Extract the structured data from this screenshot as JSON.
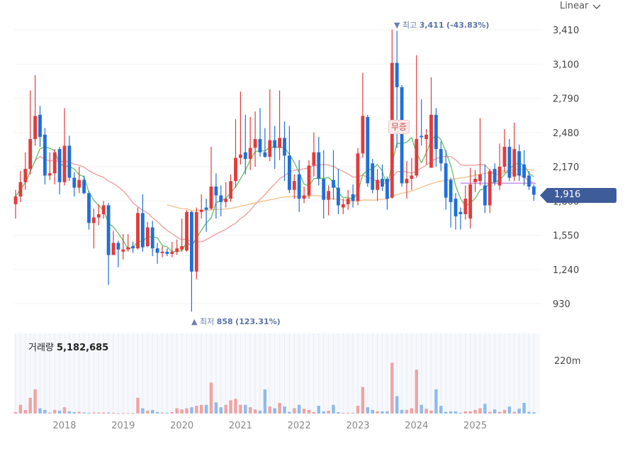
{
  "toolbar": {
    "scale_mode": "Linear",
    "scale_icon": "chevron-down-icon"
  },
  "annotations": {
    "high_prefix": "▼ 최고",
    "high_value": "3,411",
    "high_pct": "(-43.83%)",
    "low_prefix": "▲ 최저",
    "low_value": "858",
    "low_pct": "(123.31%)",
    "event_badge": "무증"
  },
  "current_price": "1,916",
  "volume": {
    "label": "거래량",
    "value": "5,182,685",
    "axis_label": "220m"
  },
  "colors": {
    "up": "#e23b3b",
    "down": "#1f6fd8",
    "vol_up": "#f0a3a3",
    "vol_down": "#8dbbeb",
    "ma_short": "#6cc46c",
    "ma_mid": "#f2a0a0",
    "ma_long": "#f6c38e",
    "ref_line": "#c28de6",
    "tag": "#3f5c9a"
  },
  "chart_data": {
    "type": "candlestick",
    "interval": "monthly",
    "start": "2017-03",
    "y_ticks": [
      "3,410",
      "3,100",
      "2,790",
      "2,480",
      "2,170",
      "1,860",
      "1,550",
      "1,240",
      "930"
    ],
    "y_tick_values": [
      3410,
      3100,
      2790,
      2480,
      2170,
      1860,
      1550,
      1240,
      930
    ],
    "ylim": [
      870,
      3420
    ],
    "x_labels": [
      "2018",
      "2019",
      "2020",
      "2021",
      "2022",
      "2023",
      "2024",
      "2025"
    ],
    "x_label_index": [
      10,
      22,
      34,
      46,
      58,
      70,
      82,
      94
    ],
    "high": {
      "value": 3411,
      "index": 77
    },
    "low": {
      "value": 858,
      "index": 36
    },
    "event_index": 76,
    "ma_periods": {
      "short": 5,
      "mid": 20,
      "long": 60
    },
    "long_ma_start_index": 31,
    "ref_line": {
      "value": 2020,
      "from_index": 91
    },
    "ohlc": [
      [
        1830,
        1960,
        1700,
        1900
      ],
      [
        1900,
        2130,
        1850,
        2030
      ],
      [
        2030,
        2300,
        1960,
        2150
      ],
      [
        2150,
        2860,
        2100,
        2420
      ],
      [
        2420,
        3000,
        2360,
        2630
      ],
      [
        2640,
        2720,
        2350,
        2440
      ],
      [
        2460,
        2520,
        2010,
        2090
      ],
      [
        2090,
        2300,
        2050,
        2110
      ],
      [
        2110,
        2330,
        2010,
        2300
      ],
      [
        2330,
        2350,
        1920,
        2030
      ],
      [
        2030,
        2700,
        2000,
        2360
      ],
      [
        2360,
        2450,
        2040,
        2070
      ],
      [
        2070,
        2120,
        1900,
        1980
      ],
      [
        1980,
        2170,
        1930,
        2050
      ],
      [
        2050,
        2090,
        1920,
        1930
      ],
      [
        1930,
        1950,
        1600,
        1660
      ],
      [
        1660,
        1790,
        1430,
        1710
      ],
      [
        1710,
        1830,
        1640,
        1740
      ],
      [
        1740,
        1860,
        1700,
        1820
      ],
      [
        1820,
        1840,
        1100,
        1370
      ],
      [
        1370,
        1590,
        1370,
        1480
      ],
      [
        1480,
        1500,
        1260,
        1420
      ],
      [
        1400,
        1560,
        1330,
        1420
      ],
      [
        1420,
        1560,
        1400,
        1440
      ],
      [
        1450,
        1490,
        1390,
        1430
      ],
      [
        1430,
        1800,
        1420,
        1750
      ],
      [
        1750,
        1920,
        1400,
        1440
      ],
      [
        1450,
        1670,
        1440,
        1620
      ],
      [
        1620,
        1680,
        1360,
        1430
      ],
      [
        1430,
        1480,
        1290,
        1390
      ],
      [
        1390,
        1450,
        1350,
        1400
      ],
      [
        1400,
        1430,
        1360,
        1380
      ],
      [
        1380,
        1490,
        1350,
        1400
      ],
      [
        1400,
        1510,
        1370,
        1430
      ],
      [
        1420,
        1700,
        1400,
        1450
      ],
      [
        1410,
        1780,
        1400,
        1760
      ],
      [
        1760,
        1770,
        858,
        1220
      ],
      [
        1220,
        1800,
        1150,
        1760
      ],
      [
        1760,
        1920,
        1700,
        1780
      ],
      [
        1800,
        1880,
        1580,
        1780
      ],
      [
        1790,
        2350,
        1780,
        1990
      ],
      [
        1990,
        2110,
        1700,
        1910
      ],
      [
        1910,
        2000,
        1720,
        1850
      ],
      [
        1850,
        2030,
        1800,
        1880
      ],
      [
        1880,
        2100,
        1850,
        2040
      ],
      [
        2040,
        2600,
        1980,
        2250
      ],
      [
        2250,
        2850,
        2190,
        2280
      ],
      [
        2300,
        2640,
        2100,
        2240
      ],
      [
        2240,
        2620,
        2140,
        2340
      ],
      [
        2340,
        2670,
        2170,
        2420
      ],
      [
        2420,
        2700,
        2260,
        2300
      ],
      [
        2300,
        2520,
        2250,
        2260
      ],
      [
        2260,
        2870,
        2220,
        2410
      ],
      [
        2410,
        2540,
        2150,
        2340
      ],
      [
        2340,
        2860,
        2230,
        2430
      ],
      [
        2430,
        2580,
        2040,
        2270
      ],
      [
        2270,
        2540,
        1930,
        1960
      ],
      [
        1960,
        2100,
        1880,
        2040
      ],
      [
        2100,
        2230,
        1760,
        1880
      ],
      [
        1880,
        1990,
        1840,
        1910
      ],
      [
        1910,
        2230,
        1880,
        2180
      ],
      [
        2180,
        2480,
        2080,
        2300
      ],
      [
        2300,
        2440,
        2000,
        2060
      ],
      [
        2060,
        2320,
        1700,
        1870
      ],
      [
        1870,
        2000,
        1730,
        1950
      ],
      [
        2050,
        2320,
        1870,
        1980
      ],
      [
        1980,
        2150,
        1740,
        1820
      ],
      [
        1800,
        1880,
        1740,
        1830
      ],
      [
        1830,
        1960,
        1780,
        1880
      ],
      [
        1920,
        2010,
        1800,
        1860
      ],
      [
        1860,
        2340,
        1820,
        2290
      ],
      [
        2290,
        3020,
        2250,
        2630
      ],
      [
        2620,
        2640,
        1990,
        2020
      ],
      [
        2200,
        2240,
        1930,
        1960
      ],
      [
        1960,
        2150,
        1860,
        2050
      ],
      [
        2060,
        2190,
        1950,
        1990
      ],
      [
        2060,
        2080,
        1780,
        1880
      ],
      [
        1890,
        3411,
        1880,
        3110
      ],
      [
        3110,
        3400,
        2340,
        2890
      ],
      [
        2890,
        2910,
        1990,
        2020
      ],
      [
        2020,
        2220,
        1880,
        2060
      ],
      [
        2060,
        2250,
        1960,
        2090
      ],
      [
        2090,
        3180,
        2070,
        2420
      ],
      [
        2450,
        2780,
        2360,
        2440
      ],
      [
        2420,
        2510,
        2190,
        2460
      ],
      [
        2160,
        2980,
        2160,
        2640
      ],
      [
        2640,
        2700,
        2170,
        2330
      ],
      [
        2330,
        2400,
        2130,
        2200
      ],
      [
        2200,
        2320,
        1780,
        1890
      ],
      [
        2050,
        2070,
        1620,
        1850
      ],
      [
        1880,
        1930,
        1600,
        1720
      ],
      [
        1760,
        1800,
        1600,
        1740
      ],
      [
        1740,
        2000,
        1690,
        1880
      ],
      [
        1700,
        2160,
        1610,
        2010
      ],
      [
        2030,
        2140,
        1940,
        2060
      ],
      [
        2040,
        2610,
        2000,
        2100
      ],
      [
        2000,
        2190,
        1750,
        1820
      ],
      [
        1820,
        2150,
        1750,
        2130
      ],
      [
        2150,
        2200,
        2000,
        2030
      ],
      [
        2000,
        2380,
        1960,
        2170
      ],
      [
        2170,
        2510,
        2120,
        2350
      ],
      [
        2350,
        2420,
        2040,
        2070
      ],
      [
        2080,
        2570,
        2040,
        2330
      ],
      [
        2310,
        2370,
        2040,
        2090
      ],
      [
        2190,
        2320,
        2000,
        2070
      ],
      [
        2090,
        2130,
        1960,
        1990
      ],
      [
        1990,
        2010,
        1860,
        1916
      ]
    ],
    "volume_unit": "m",
    "volume_max": 220,
    "volume": [
      6,
      36,
      15,
      65,
      100,
      22,
      15,
      4,
      15,
      12,
      26,
      9,
      6,
      7,
      4,
      3,
      4,
      4,
      4,
      4,
      3,
      1,
      1,
      1,
      1,
      65,
      22,
      12,
      15,
      6,
      4,
      3,
      6,
      22,
      17,
      22,
      26,
      32,
      36,
      36,
      128,
      46,
      26,
      36,
      55,
      61,
      36,
      36,
      26,
      17,
      12,
      100,
      29,
      22,
      44,
      29,
      7,
      22,
      36,
      20,
      15,
      6,
      32,
      9,
      12,
      36,
      6,
      3,
      3,
      3,
      32,
      110,
      26,
      15,
      9,
      9,
      9,
      210,
      72,
      15,
      15,
      22,
      181,
      36,
      20,
      12,
      100,
      32,
      7,
      9,
      9,
      3,
      9,
      9,
      15,
      22,
      40,
      7,
      17,
      7,
      15,
      29,
      7,
      20,
      44,
      7,
      5.18
    ]
  }
}
